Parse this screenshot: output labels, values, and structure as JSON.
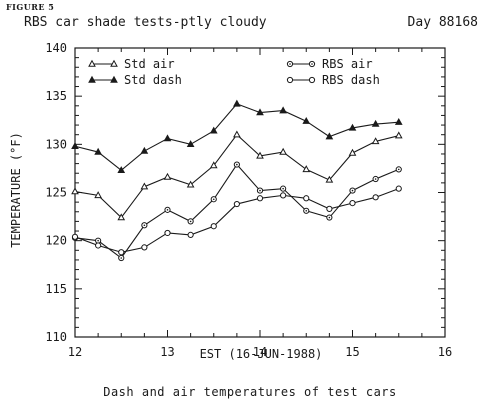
{
  "figure_label": "FIGURE 5",
  "header": {
    "title": "RBS car shade tests-ptly cloudy",
    "day": "Day 88168"
  },
  "caption": "Dash and air temperatures of test cars",
  "chart_data": {
    "type": "line",
    "title": "RBS car shade tests-ptly cloudy",
    "xlabel": "EST (16-JUN-1988)",
    "ylabel": "TEMPERATURE (°F)",
    "xlim": [
      12,
      16
    ],
    "ylim": [
      110,
      140
    ],
    "xticks": [
      12,
      13,
      14,
      15,
      16
    ],
    "yticks": [
      110,
      115,
      120,
      125,
      130,
      135,
      140
    ],
    "grid": false,
    "legend_position": "top",
    "x": [
      12.0,
      12.25,
      12.5,
      12.75,
      13.0,
      13.25,
      13.5,
      13.75,
      14.0,
      14.25,
      14.5,
      14.75,
      15.0,
      15.25,
      15.5
    ],
    "series": [
      {
        "name": "Std air",
        "marker": "triangle-open",
        "values": [
          125.1,
          124.7,
          122.4,
          125.6,
          126.6,
          125.8,
          127.8,
          131.0,
          128.8,
          129.2,
          127.4,
          126.3,
          129.1,
          130.3,
          130.9
        ]
      },
      {
        "name": "Std dash",
        "marker": "triangle-filled",
        "values": [
          129.8,
          129.2,
          127.3,
          129.3,
          130.6,
          130.0,
          131.4,
          134.2,
          133.3,
          133.5,
          132.4,
          130.8,
          131.7,
          132.1,
          132.3
        ]
      },
      {
        "name": "RBS air",
        "marker": "circle-dot",
        "values": [
          120.3,
          120.0,
          118.2,
          121.6,
          123.2,
          122.0,
          124.3,
          127.9,
          125.2,
          125.4,
          123.1,
          122.4,
          125.2,
          126.4,
          127.4
        ]
      },
      {
        "name": "RBS dash",
        "marker": "circle-open",
        "values": [
          120.4,
          119.5,
          118.8,
          119.3,
          120.8,
          120.6,
          121.5,
          123.8,
          124.4,
          124.7,
          124.4,
          123.3,
          123.9,
          124.5,
          125.4
        ]
      }
    ]
  }
}
